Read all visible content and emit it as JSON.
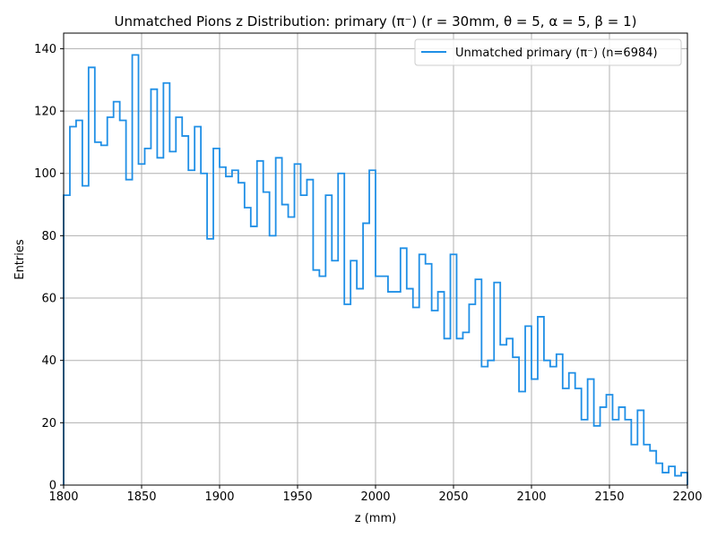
{
  "chart_data": {
    "type": "histogram",
    "title": "Unmatched Pions z Distribution: primary (π⁻) (r = 30mm, θ = 5, α = 5, β = 1)",
    "xlabel": "z (mm)",
    "ylabel": "Entries",
    "xlim": [
      1800,
      2200
    ],
    "ylim": [
      0,
      145
    ],
    "xticks": [
      1800,
      1850,
      1900,
      1950,
      2000,
      2050,
      2100,
      2150,
      2200
    ],
    "yticks": [
      0,
      20,
      40,
      60,
      80,
      100,
      120,
      140
    ],
    "grid": true,
    "legend_position": "top-right",
    "bin_edges_start": 1800,
    "bin_width": 4,
    "series": [
      {
        "name": "Unmatched primary (π⁻) (n=6984)",
        "color": "#1f8fe6",
        "values": [
          93,
          115,
          117,
          96,
          134,
          110,
          109,
          118,
          123,
          117,
          98,
          138,
          103,
          108,
          127,
          105,
          129,
          107,
          118,
          112,
          101,
          115,
          100,
          79,
          108,
          102,
          99,
          101,
          97,
          89,
          83,
          104,
          94,
          80,
          105,
          90,
          86,
          103,
          93,
          98,
          69,
          67,
          93,
          72,
          100,
          58,
          72,
          63,
          84,
          101,
          67,
          67,
          62,
          62,
          76,
          63,
          57,
          74,
          71,
          56,
          62,
          47,
          74,
          47,
          49,
          58,
          66,
          38,
          40,
          65,
          45,
          47,
          41,
          30,
          51,
          34,
          54,
          40,
          38,
          42,
          31,
          36,
          31,
          21,
          34,
          19,
          25,
          29,
          21,
          25,
          21,
          13,
          24,
          13,
          11,
          7,
          4,
          6,
          3,
          4
        ]
      }
    ]
  }
}
